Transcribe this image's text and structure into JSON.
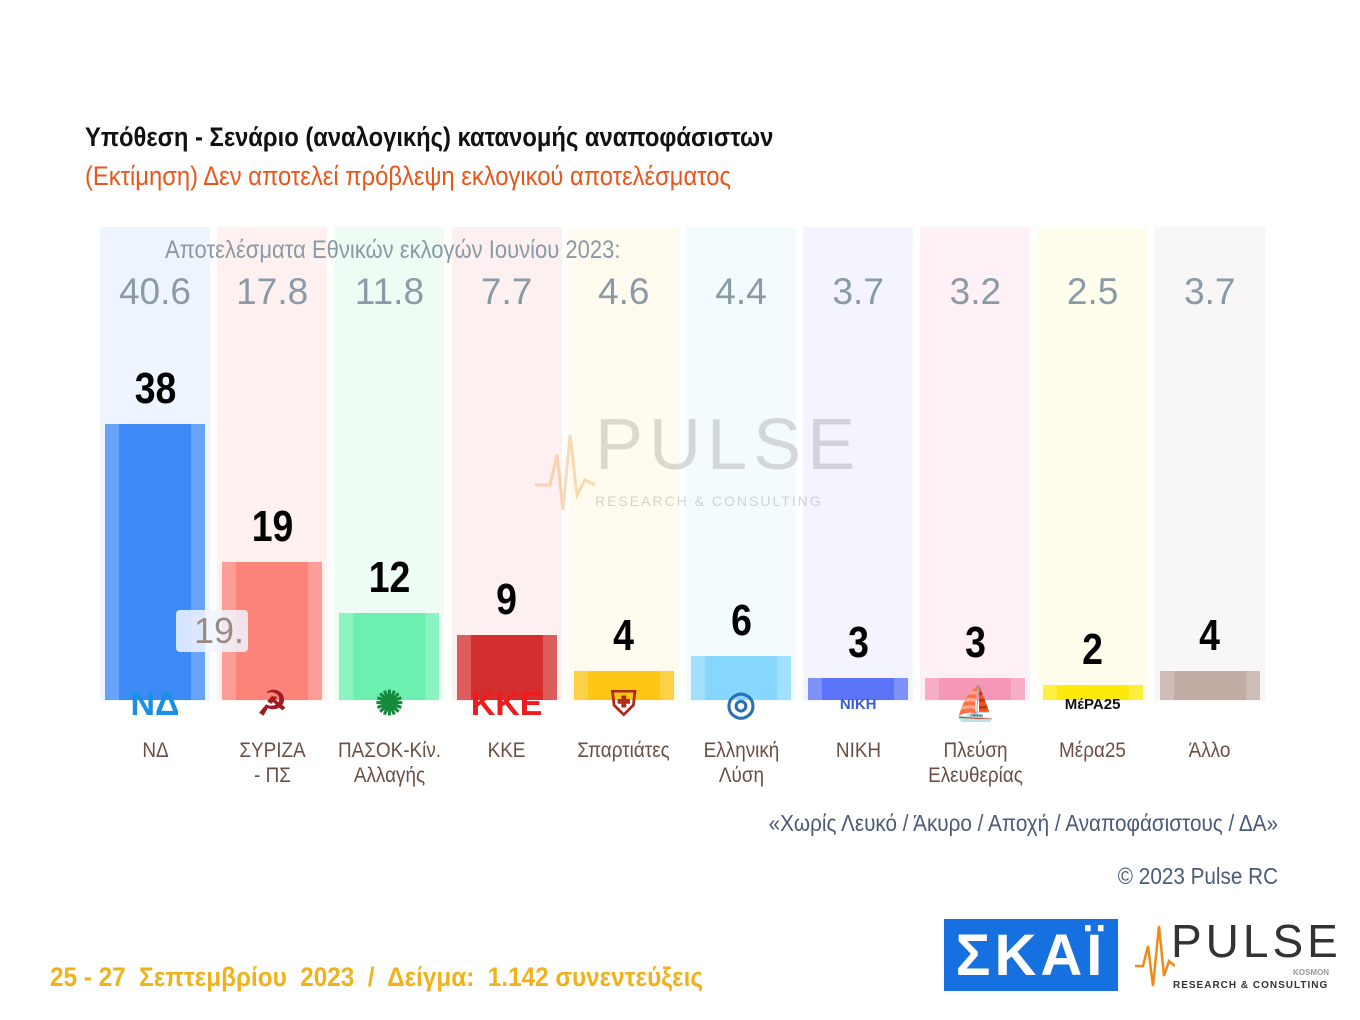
{
  "chart_data": {
    "type": "bar",
    "title": "Υπόθεση - Σενάριο (αναλογικής) κατανομής αναποφάσιστων",
    "subtitle": "(Εκτίμηση)   Δεν αποτελεί πρόβλεψη εκλογικού αποτελέσματος",
    "previous_label": "Αποτελέσματα Εθνικών εκλογών Ιουνίου 2023:",
    "categories": [
      "ΝΔ",
      "ΣΥΡΙΖΑ - ΠΣ",
      "ΠΑΣΟΚ-Κίν. Αλλαγής",
      "ΚΚΕ",
      "Σπαρτιάτες",
      "Ελληνική Λύση",
      "ΝΙΚΗ",
      "Πλεύση Ελευθερίας",
      "Μέρα25",
      "Άλλο"
    ],
    "name_lines": [
      [
        "ΝΔ"
      ],
      [
        "ΣΥΡΙΖΑ",
        "- ΠΣ"
      ],
      [
        "ΠΑΣΟΚ-Κίν.",
        "Αλλαγής"
      ],
      [
        "ΚΚΕ"
      ],
      [
        "Σπαρτιάτες"
      ],
      [
        "Ελληνική",
        "Λύση"
      ],
      [
        "ΝΙΚΗ"
      ],
      [
        "Πλεύση",
        "Ελευθερίας"
      ],
      [
        "Μέρα25"
      ],
      [
        "Άλλο"
      ]
    ],
    "series": [
      {
        "name": "Εκτίμηση",
        "values": [
          38,
          19,
          12,
          9,
          4,
          6,
          3,
          3,
          2,
          4
        ]
      },
      {
        "name": "Εκλογές Ιουνίου 2023",
        "values": [
          "40.6",
          "17.8",
          "11.8",
          "7.7",
          "4.6",
          "4.4",
          "3.7",
          "3.2",
          "2.5",
          "3.7"
        ]
      }
    ],
    "colors": [
      "#3d8af7",
      "#fc8379",
      "#6bf0b0",
      "#d42f2f",
      "#fdc514",
      "#86d6fd",
      "#5c74f8",
      "#f598b7",
      "#fdea0a",
      "#c1aba3"
    ],
    "bg_colors": [
      "#eef5ff",
      "#fff1f0",
      "#eefcf4",
      "#fdf0f0",
      "#fffcef",
      "#f4fbff",
      "#f3f4ff",
      "#fff1f5",
      "#fffdec",
      "#f8f6f6"
    ],
    "logos": [
      "ΝΔ",
      "☭",
      "✺",
      "ΚΚΕ",
      "⛨",
      "◎",
      "ΝΙΚΗ",
      "⛵",
      "ΜέΡΑ25",
      ""
    ],
    "logo_colors": [
      "#1a8fe3",
      "#a31b22",
      "#138a3a",
      "#ee1c1c",
      "#b02a1a",
      "#2a6fb8",
      "#3a5bd8",
      "#b04aa8",
      "#111",
      ""
    ],
    "ylim": [
      0,
      45
    ],
    "tooltip": "19."
  },
  "note": "«Χωρίς Λευκό / Άκυρο / Αποχή / Αναποφάσιστους / ΔΑ»",
  "copyright": "© 2023 Pulse RC",
  "footer": "25 - 27  Σεπτεμβρίου  2023  /  Δείγμα:  1.142 συνεντεύξεις",
  "brand": {
    "skai": "ΣΚΑΪ",
    "pulse": "PULSE",
    "pulse_sub": "RESEARCH & CONSULTING",
    "kosmon": "KOSMON"
  }
}
